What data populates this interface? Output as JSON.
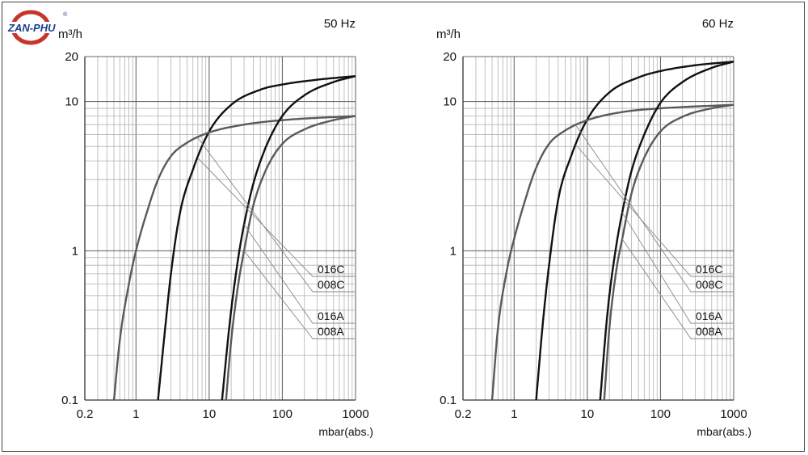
{
  "logo": {
    "text": "ZAN-PHU",
    "registered": "®"
  },
  "chart_data": [
    {
      "type": "line",
      "title": "50 Hz",
      "xlabel": "mbar(abs.)",
      "ylabel": "m³/h",
      "x_scale": "log",
      "y_scale": "log",
      "xlim": [
        0.2,
        1000
      ],
      "ylim": [
        0.1,
        20
      ],
      "x_ticks": [
        0.2,
        1,
        10,
        100,
        1000
      ],
      "x_tick_labels": [
        "0.2",
        "1",
        "10",
        "100",
        "1000"
      ],
      "y_ticks": [
        0.1,
        1,
        10,
        20
      ],
      "y_tick_labels": [
        "0.1",
        "1",
        "10",
        "20"
      ],
      "grid": true,
      "legend_placement": "right, labels with leader lines",
      "series": [
        {
          "name": "016C",
          "color": "#111111",
          "x": [
            2,
            2.5,
            3,
            4,
            6,
            10,
            20,
            50,
            100,
            300,
            1000
          ],
          "y": [
            0.1,
            0.3,
            0.7,
            1.8,
            3.5,
            6.3,
            9.5,
            12,
            13,
            14,
            14.8
          ]
        },
        {
          "name": "008C",
          "color": "#5a5a5a",
          "x": [
            0.5,
            0.6,
            0.8,
            1,
            1.5,
            2,
            3,
            5,
            10,
            30,
            100,
            1000
          ],
          "y": [
            0.1,
            0.25,
            0.6,
            1.0,
            2.0,
            3.0,
            4.3,
            5.3,
            6.2,
            7.0,
            7.5,
            8.0
          ]
        },
        {
          "name": "016A",
          "color": "#111111",
          "x": [
            15,
            18,
            20,
            25,
            30,
            40,
            60,
            100,
            200,
            500,
            1000
          ],
          "y": [
            0.1,
            0.25,
            0.4,
            0.9,
            1.5,
            2.8,
            5,
            8,
            11,
            13.5,
            14.8
          ]
        },
        {
          "name": "008A",
          "color": "#5a5a5a",
          "x": [
            17,
            20,
            25,
            30,
            40,
            60,
            100,
            200,
            500,
            1000
          ],
          "y": [
            0.1,
            0.25,
            0.6,
            1.0,
            2.0,
            3.5,
            5.2,
            6.5,
            7.5,
            8.0
          ]
        }
      ]
    },
    {
      "type": "line",
      "title": "60 Hz",
      "xlabel": "mbar(abs.)",
      "ylabel": "m³/h",
      "x_scale": "log",
      "y_scale": "log",
      "xlim": [
        0.2,
        1000
      ],
      "ylim": [
        0.1,
        20
      ],
      "x_ticks": [
        0.2,
        1,
        10,
        100,
        1000
      ],
      "x_tick_labels": [
        "0.2",
        "1",
        "10",
        "100",
        "1000"
      ],
      "y_ticks": [
        0.1,
        1,
        10,
        20
      ],
      "y_tick_labels": [
        "0.1",
        "1",
        "10",
        "20"
      ],
      "grid": true,
      "legend_placement": "right, labels with leader lines",
      "series": [
        {
          "name": "016C",
          "color": "#111111",
          "x": [
            2,
            2.5,
            3,
            4,
            6,
            10,
            20,
            50,
            100,
            300,
            1000
          ],
          "y": [
            0.1,
            0.35,
            0.8,
            2.2,
            4.3,
            7.6,
            11.5,
            14.5,
            16,
            17.5,
            18.5
          ]
        },
        {
          "name": "008C",
          "color": "#5a5a5a",
          "x": [
            0.5,
            0.6,
            0.8,
            1,
            1.5,
            2,
            3,
            5,
            10,
            30,
            100,
            1000
          ],
          "y": [
            0.1,
            0.3,
            0.75,
            1.2,
            2.4,
            3.6,
            5.2,
            6.4,
            7.5,
            8.5,
            9.0,
            9.5
          ]
        },
        {
          "name": "016A",
          "color": "#111111",
          "x": [
            15,
            18,
            20,
            25,
            30,
            40,
            60,
            100,
            200,
            500,
            1000
          ],
          "y": [
            0.1,
            0.3,
            0.5,
            1.1,
            1.8,
            3.4,
            6,
            9.8,
            13.5,
            16.8,
            18.5
          ]
        },
        {
          "name": "008A",
          "color": "#5a5a5a",
          "x": [
            17,
            20,
            25,
            30,
            40,
            60,
            100,
            200,
            500,
            1000
          ],
          "y": [
            0.1,
            0.3,
            0.75,
            1.2,
            2.4,
            4.2,
            6.3,
            7.9,
            9.0,
            9.5
          ]
        }
      ]
    }
  ]
}
